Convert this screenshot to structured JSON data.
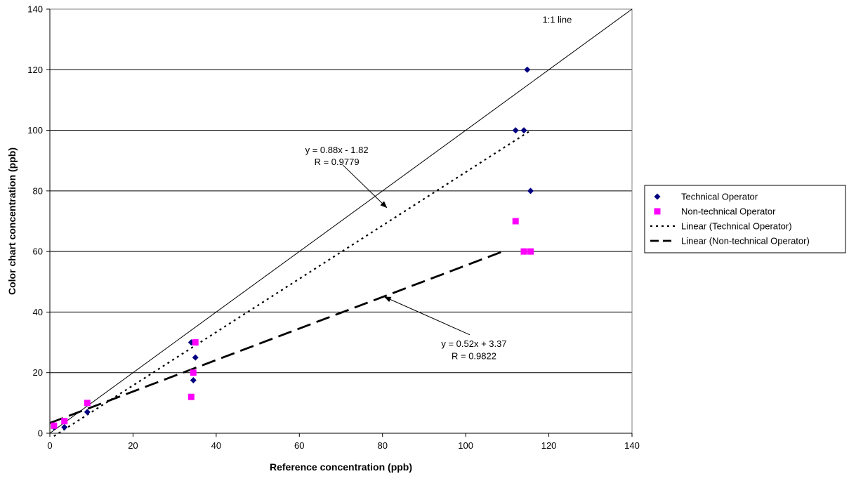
{
  "chart_data": {
    "type": "scatter",
    "xlabel": "Reference concentration (ppb)",
    "ylabel": "Color chart concentration (ppb)",
    "xlim": [
      0,
      140
    ],
    "ylim": [
      0,
      140
    ],
    "x_ticks": [
      0,
      20,
      40,
      60,
      80,
      100,
      120,
      140
    ],
    "y_ticks": [
      0,
      20,
      40,
      60,
      80,
      100,
      120,
      140
    ],
    "grid": "horizontal",
    "legend_position": "right",
    "series": [
      {
        "name": "Technical Operator",
        "marker": "diamond",
        "color": "#000080",
        "points": [
          [
            1,
            2
          ],
          [
            3.5,
            2
          ],
          [
            9,
            7
          ],
          [
            34,
            30
          ],
          [
            34.5,
            17.5
          ],
          [
            35,
            25
          ],
          [
            112,
            100
          ],
          [
            114,
            100
          ],
          [
            114.8,
            120
          ],
          [
            115.6,
            80
          ]
        ]
      },
      {
        "name": "Non-technical Operator",
        "marker": "square",
        "color": "#ff00ff",
        "points": [
          [
            1,
            2.5
          ],
          [
            3.5,
            4
          ],
          [
            9,
            10
          ],
          [
            34,
            12
          ],
          [
            34.5,
            20
          ],
          [
            35,
            30
          ],
          [
            112,
            70
          ],
          [
            114,
            60
          ],
          [
            115.6,
            60
          ]
        ]
      }
    ],
    "lines": [
      {
        "name": "Linear (Technical Operator)",
        "style": "dotted",
        "color": "#000000",
        "slope": 0.88,
        "intercept": -1.82,
        "x_range": [
          1,
          115.6
        ]
      },
      {
        "name": "Linear (Non-technical Operator)",
        "style": "dashed",
        "color": "#000000",
        "slope": 0.52,
        "intercept": 3.37,
        "x_range": [
          0,
          109
        ]
      },
      {
        "name": "1:1 line",
        "style": "solid",
        "color": "#000000",
        "slope": 1,
        "intercept": 0,
        "x_range": [
          0,
          140
        ]
      }
    ],
    "annotations": {
      "one_to_one": "1:1 line",
      "tech_eq": "y = 0.88x - 1.82",
      "tech_r": "R = 0.9779",
      "nontech_eq": "y = 0.52x + 3.37",
      "nontech_r": "R = 0.9822"
    },
    "arrows": [
      {
        "from": [
          70.5,
          88.5
        ],
        "to": [
          81,
          74.5
        ]
      },
      {
        "from": [
          101,
          32.5
        ],
        "to": [
          80.5,
          45
        ]
      }
    ],
    "legend": [
      {
        "label": "Technical Operator",
        "kind": "diamond",
        "color": "#000080"
      },
      {
        "label": "Non-technical Operator",
        "kind": "square",
        "color": "#ff00ff"
      },
      {
        "label": "Linear (Technical Operator)",
        "kind": "dotted",
        "color": "#000000"
      },
      {
        "label": "Linear (Non-technical Operator)",
        "kind": "dashed",
        "color": "#000000"
      }
    ]
  }
}
